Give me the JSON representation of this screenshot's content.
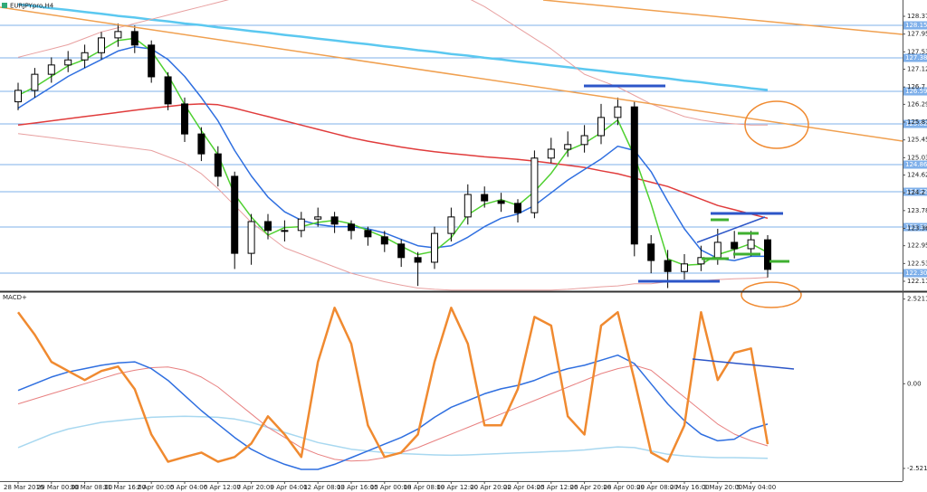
{
  "chart_data": [
    {
      "type": "candlestick",
      "title": "EURJPYpro,H4",
      "categories": [
        "28 Mar 2016",
        null,
        "29 Mar 00:00",
        null,
        "30 Mar 08:00",
        null,
        "31 Mar 16:00",
        null,
        "2 Apr 00:00",
        null,
        "5 Apr 04:00",
        null,
        "6 Apr 12:00",
        null,
        "7 Apr 20:00",
        null,
        "9 Apr 04:00",
        null,
        "12 Apr 08:00",
        null,
        "13 Apr 16:00",
        null,
        "15 Apr 00:00",
        null,
        "18 Apr 08:00",
        null,
        "19 Apr 12:00",
        null,
        "20 Apr 20:00",
        null,
        "22 Apr 04:00",
        null,
        "25 Apr 12:00",
        null,
        "26 Apr 20:00",
        null,
        "28 Apr 00:00",
        null,
        "29 Apr 08:00",
        null,
        "2 May 16:00",
        null,
        "3 May 20:00",
        null,
        "5 May 04:00",
        null
      ],
      "open": [
        126.35,
        126.62,
        127.0,
        127.22,
        127.34,
        127.51,
        127.86,
        128.01,
        127.69,
        126.94,
        126.3,
        125.59,
        125.12,
        124.59,
        122.77,
        123.52,
        123.31,
        123.31,
        123.58,
        123.63,
        123.46,
        123.31,
        123.16,
        122.99,
        122.67,
        122.56,
        123.24,
        123.63,
        124.16,
        124.01,
        123.95,
        123.73,
        125.02,
        125.23,
        125.34,
        125.55,
        125.98,
        126.23,
        122.99,
        122.6,
        122.34,
        122.52,
        122.67,
        123.03,
        122.88,
        123.09
      ],
      "high": [
        126.8,
        127.15,
        127.4,
        127.55,
        127.7,
        128.0,
        128.2,
        128.15,
        127.8,
        127.05,
        126.45,
        125.75,
        125.3,
        124.7,
        123.7,
        123.7,
        123.55,
        123.75,
        123.85,
        123.75,
        123.55,
        123.4,
        123.3,
        123.1,
        122.8,
        123.4,
        123.85,
        124.4,
        124.35,
        124.2,
        124.05,
        125.2,
        125.5,
        125.65,
        125.8,
        126.3,
        126.45,
        126.35,
        123.2,
        122.85,
        122.75,
        122.95,
        123.35,
        123.3,
        123.3,
        123.2
      ],
      "low": [
        126.15,
        126.45,
        126.8,
        127.05,
        127.15,
        127.35,
        127.65,
        127.5,
        126.8,
        126.15,
        125.4,
        124.95,
        124.35,
        122.4,
        122.5,
        123.1,
        123.05,
        123.15,
        123.4,
        123.25,
        123.1,
        122.95,
        122.8,
        122.45,
        122.0,
        122.4,
        123.05,
        123.45,
        123.85,
        123.75,
        123.5,
        123.6,
        124.9,
        125.05,
        125.15,
        125.35,
        125.8,
        122.7,
        122.3,
        121.95,
        122.15,
        122.35,
        122.5,
        122.65,
        122.7,
        122.2
      ],
      "close": [
        126.62,
        127.0,
        127.22,
        127.34,
        127.51,
        127.86,
        128.01,
        127.69,
        126.94,
        126.3,
        125.59,
        125.12,
        124.59,
        122.77,
        123.52,
        123.31,
        123.31,
        123.58,
        123.63,
        123.46,
        123.31,
        123.16,
        122.99,
        122.67,
        122.56,
        123.24,
        123.63,
        124.16,
        124.01,
        123.95,
        123.73,
        125.02,
        125.23,
        125.34,
        125.55,
        125.98,
        126.23,
        122.99,
        122.6,
        122.34,
        122.52,
        122.67,
        123.03,
        122.88,
        123.09,
        122.39
      ],
      "series": [
        {
          "color": "#5bc8f0",
          "width": 2.5,
          "values": [
            128.65,
            128.61,
            128.56,
            128.52,
            128.47,
            128.43,
            128.38,
            128.34,
            128.29,
            128.25,
            128.2,
            128.16,
            128.11,
            128.07,
            128.02,
            127.98,
            127.93,
            127.89,
            127.84,
            127.8,
            127.75,
            127.71,
            127.66,
            127.62,
            127.57,
            127.53,
            127.48,
            127.44,
            127.39,
            127.35,
            127.3,
            127.26,
            127.21,
            127.17,
            127.12,
            127.08,
            127.03,
            126.99,
            126.94,
            126.9,
            126.85,
            126.81,
            126.76,
            126.72,
            126.67,
            126.63
          ]
        },
        {
          "color": "#e8a0a0",
          "width": 1,
          "values": [
            127.4,
            127.5,
            127.6,
            127.7,
            127.85,
            128.0,
            128.1,
            128.2,
            128.3,
            128.4,
            128.5,
            128.6,
            128.7,
            128.8,
            128.9,
            129.0,
            129.0,
            129.0,
            129.0,
            129.0,
            129.0,
            129.0,
            129.0,
            129.0,
            129.0,
            129.0,
            129.0,
            128.8,
            128.6,
            128.35,
            128.1,
            127.85,
            127.6,
            127.3,
            127.0,
            126.85,
            126.7,
            126.5,
            126.3,
            126.15,
            126.0,
            125.92,
            125.86,
            125.83,
            125.8,
            125.8
          ]
        },
        {
          "color": "#e8a0a0",
          "width": 1,
          "values": [
            125.6,
            125.55,
            125.5,
            125.45,
            125.4,
            125.35,
            125.3,
            125.25,
            125.2,
            125.05,
            124.9,
            124.65,
            124.3,
            123.9,
            123.5,
            123.2,
            122.9,
            122.75,
            122.6,
            122.45,
            122.3,
            122.2,
            122.1,
            122.02,
            121.95,
            121.92,
            121.9,
            121.9,
            121.9,
            121.9,
            121.9,
            121.9,
            121.9,
            121.92,
            121.95,
            121.98,
            122.0,
            122.05,
            122.05,
            122.1,
            122.1,
            122.12,
            122.15,
            122.17,
            122.18,
            122.2
          ]
        },
        {
          "color": "#e03c3c",
          "width": 1.5,
          "values": [
            125.8,
            125.85,
            125.9,
            125.95,
            126.0,
            126.05,
            126.1,
            126.15,
            126.2,
            126.24,
            126.28,
            126.3,
            126.28,
            126.2,
            126.1,
            126.0,
            125.9,
            125.8,
            125.7,
            125.6,
            125.5,
            125.42,
            125.35,
            125.28,
            125.22,
            125.17,
            125.13,
            125.09,
            125.05,
            125.02,
            124.99,
            124.95,
            124.9,
            124.85,
            124.8,
            124.72,
            124.65,
            124.55,
            124.45,
            124.35,
            124.2,
            124.05,
            123.9,
            123.8,
            123.7,
            123.6
          ]
        },
        {
          "color": "#2f6fe0",
          "width": 1.5,
          "values": [
            126.2,
            126.45,
            126.7,
            126.95,
            127.15,
            127.35,
            127.55,
            127.65,
            127.6,
            127.35,
            126.95,
            126.45,
            125.9,
            125.2,
            124.6,
            124.1,
            123.75,
            123.55,
            123.45,
            123.4,
            123.4,
            123.35,
            123.25,
            123.1,
            122.95,
            122.9,
            122.95,
            123.15,
            123.4,
            123.6,
            123.7,
            123.9,
            124.2,
            124.5,
            124.75,
            125.0,
            125.3,
            125.2,
            124.7,
            124.0,
            123.35,
            122.85,
            122.65,
            122.6,
            122.7,
            122.7
          ]
        },
        {
          "color": "#4fd030",
          "width": 1.5,
          "values": [
            126.5,
            126.7,
            126.95,
            127.2,
            127.35,
            127.57,
            127.8,
            127.85,
            127.55,
            126.98,
            126.28,
            125.67,
            125.1,
            124.16,
            123.63,
            123.2,
            123.38,
            123.4,
            123.5,
            123.55,
            123.47,
            123.31,
            123.15,
            122.94,
            122.74,
            122.82,
            123.14,
            123.68,
            123.93,
            124.04,
            123.9,
            124.23,
            124.66,
            125.2,
            125.37,
            125.62,
            125.92,
            125.07,
            123.94,
            122.64,
            122.49,
            122.51,
            122.74,
            122.86,
            123.0,
            122.79
          ]
        }
      ],
      "levels": [
        128.156,
        127.387,
        126.596,
        125.827,
        124.866,
        124.225,
        123.391,
        122.302
      ],
      "level_color": "#7fb0ea",
      "ylim": [
        121.875,
        128.755
      ],
      "yticks": [
        122.11,
        122.53,
        122.95,
        123.36,
        123.78,
        124.2,
        124.62,
        125.03,
        125.45,
        125.87,
        126.29,
        126.7,
        127.12,
        127.53,
        127.95,
        128.37
      ],
      "grid": false
    },
    {
      "type": "line",
      "title": "MACD+",
      "series": [
        {
          "color": "#a8d8f0",
          "width": 1.5,
          "values": [
            -1.9,
            -1.7,
            -1.5,
            -1.35,
            -1.25,
            -1.15,
            -1.1,
            -1.05,
            -1.0,
            -0.98,
            -0.97,
            -0.98,
            -1.0,
            -1.05,
            -1.15,
            -1.3,
            -1.45,
            -1.6,
            -1.75,
            -1.85,
            -1.95,
            -2.0,
            -2.05,
            -2.08,
            -2.1,
            -2.12,
            -2.13,
            -2.12,
            -2.1,
            -2.08,
            -2.06,
            -2.04,
            -2.02,
            -2.0,
            -1.97,
            -1.92,
            -1.88,
            -1.9,
            -2.0,
            -2.1,
            -2.15,
            -2.18,
            -2.2,
            -2.2,
            -2.21,
            -2.22
          ]
        },
        {
          "color": "#e88080",
          "width": 1,
          "values": [
            -0.6,
            -0.45,
            -0.3,
            -0.15,
            0.0,
            0.15,
            0.3,
            0.4,
            0.48,
            0.5,
            0.4,
            0.2,
            -0.1,
            -0.5,
            -0.9,
            -1.3,
            -1.6,
            -1.9,
            -2.1,
            -2.25,
            -2.3,
            -2.28,
            -2.2,
            -2.05,
            -1.9,
            -1.7,
            -1.5,
            -1.3,
            -1.1,
            -0.9,
            -0.7,
            -0.5,
            -0.3,
            -0.1,
            0.1,
            0.3,
            0.45,
            0.55,
            0.4,
            0.0,
            -0.4,
            -0.8,
            -1.2,
            -1.5,
            -1.7,
            -1.85
          ]
        },
        {
          "color": "#2f6fe0",
          "width": 1.5,
          "values": [
            -0.2,
            0.0,
            0.2,
            0.35,
            0.45,
            0.55,
            0.62,
            0.65,
            0.45,
            0.1,
            -0.35,
            -0.8,
            -1.2,
            -1.6,
            -1.95,
            -2.2,
            -2.4,
            -2.55,
            -2.55,
            -2.4,
            -2.2,
            -2.0,
            -1.8,
            -1.6,
            -1.35,
            -1.0,
            -0.7,
            -0.5,
            -0.3,
            -0.15,
            -0.05,
            0.1,
            0.3,
            0.45,
            0.55,
            0.7,
            0.85,
            0.6,
            0.0,
            -0.6,
            -1.1,
            -1.5,
            -1.7,
            -1.65,
            -1.35,
            -1.2
          ]
        },
        {
          "color": "#f08a30",
          "width": 2.5,
          "values": [
            2.13,
            1.46,
            0.65,
            0.38,
            0.11,
            0.38,
            0.51,
            -0.16,
            -1.51,
            -2.32,
            -2.18,
            -2.05,
            -2.32,
            -2.18,
            -1.78,
            -0.97,
            -1.51,
            -2.18,
            0.65,
            2.26,
            1.19,
            -1.24,
            -2.18,
            -2.05,
            -1.51,
            0.65,
            2.26,
            1.19,
            -1.24,
            -1.24,
            -0.16,
            1.99,
            1.73,
            -0.97,
            -1.51,
            1.73,
            2.13,
            0.11,
            -2.05,
            -2.32,
            -1.24,
            2.13,
            0.11,
            0.92,
            1.05,
            -1.8
          ]
        }
      ],
      "ylim": [
        -2.9,
        2.7
      ],
      "yticks": [
        2.5211,
        {
          "value": 0,
          "label": "0.00"
        },
        -2.5211
      ]
    }
  ]
}
